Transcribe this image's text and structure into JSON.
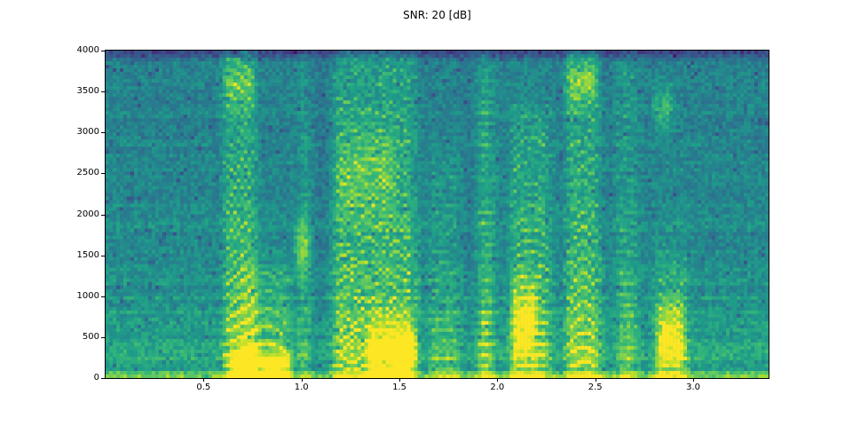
{
  "chart_data": {
    "type": "heatmap",
    "subtype": "speech-spectrogram",
    "title": "SNR: 20 [dB]",
    "xlabel": "",
    "ylabel": "",
    "xlim": [
      0,
      3.385
    ],
    "ylim": [
      0,
      4000
    ],
    "xticks": [
      0.5,
      1.0,
      1.5,
      2.0,
      2.5,
      3.0
    ],
    "yticks": [
      0,
      500,
      1000,
      1500,
      2000,
      2500,
      3000,
      3500,
      4000
    ],
    "grid_off": true,
    "legend": "none",
    "colormap": "viridis",
    "colormap_stops": [
      [
        68,
        1,
        84
      ],
      [
        72,
        40,
        120
      ],
      [
        62,
        74,
        137
      ],
      [
        49,
        104,
        142
      ],
      [
        38,
        130,
        142
      ],
      [
        31,
        158,
        137
      ],
      [
        53,
        183,
        121
      ],
      [
        109,
        205,
        89
      ],
      [
        180,
        222,
        44
      ],
      [
        253,
        231,
        37
      ]
    ],
    "grid": {
      "cols": 187,
      "rows": 92
    },
    "seed": 1337,
    "noise": {
      "row": 0.06,
      "cell": 0.17,
      "speckle_p": 0.05,
      "speckle": 0.13
    },
    "background": {
      "base": 0.5,
      "tilt": 0.06,
      "low_boost": 0.1,
      "low_scale": 800,
      "low_streak": 0.1,
      "streak_period": 185,
      "streak_scale": 1100,
      "top_start": 3840,
      "top_drop": 0.24,
      "bottom_line_amp": 0.22,
      "bottom_line_fw": 60
    },
    "segments": [
      {
        "t0": 0.58,
        "t1": 0.8,
        "amp": 0.42,
        "fmax": 4000,
        "f0": [
          130,
          200
        ],
        "arc": false
      },
      {
        "t0": 0.66,
        "t1": 0.97,
        "amp": 0.36,
        "fmax": 1300,
        "f0": [
          110,
          215
        ],
        "arc": true
      },
      {
        "t0": 0.97,
        "t1": 1.06,
        "amp": 0.27,
        "fmax": 4000,
        "f0": [
          140,
          140
        ],
        "arc": false
      },
      {
        "t0": 1.14,
        "t1": 1.62,
        "amp": 0.42,
        "fmax": 4000,
        "f0": [
          130,
          115
        ],
        "arc": false,
        "wob": 35,
        "wobf": 3
      },
      {
        "t0": 1.63,
        "t1": 1.83,
        "amp": 0.2,
        "fmax": 2600,
        "f0": [
          120,
          115
        ],
        "arc": false
      },
      {
        "t0": 1.88,
        "t1": 2.01,
        "amp": 0.36,
        "fmax": 4000,
        "f0": [
          135,
          135
        ],
        "arc": false
      },
      {
        "t0": 2.04,
        "t1": 2.3,
        "amp": 0.4,
        "fmax": 3200,
        "f0": [
          125,
          140
        ],
        "arc": true
      },
      {
        "t0": 2.33,
        "t1": 2.55,
        "amp": 0.42,
        "fmax": 4000,
        "f0": [
          105,
          185
        ],
        "arc": true
      },
      {
        "t0": 2.59,
        "t1": 2.74,
        "amp": 0.27,
        "fmax": 3800,
        "f0": [
          130,
          125
        ],
        "arc": false
      },
      {
        "t0": 2.78,
        "t1": 3.0,
        "amp": 0.34,
        "fmax": 1500,
        "f0": [
          190,
          105
        ],
        "arc": false
      }
    ],
    "blobs": [
      {
        "t0": 0.62,
        "t1": 0.97,
        "fc": 160,
        "fw": 140,
        "amp": 0.38
      },
      {
        "t0": 0.58,
        "t1": 0.78,
        "fc": 3600,
        "fw": 300,
        "amp": 0.2
      },
      {
        "t0": 0.95,
        "t1": 1.06,
        "fc": 1600,
        "fw": 300,
        "amp": 0.26
      },
      {
        "t0": 1.16,
        "t1": 1.5,
        "fc": 2500,
        "fw": 500,
        "amp": 0.14
      },
      {
        "t0": 1.32,
        "t1": 1.6,
        "fc": 350,
        "fw": 320,
        "amp": 0.38
      },
      {
        "t0": 2.06,
        "t1": 2.22,
        "fc": 700,
        "fw": 450,
        "amp": 0.33
      },
      {
        "t0": 2.33,
        "t1": 2.52,
        "fc": 3600,
        "fw": 280,
        "amp": 0.24
      },
      {
        "t0": 2.8,
        "t1": 2.97,
        "fc": 500,
        "fw": 380,
        "amp": 0.34
      },
      {
        "t0": 2.78,
        "t1": 2.92,
        "fc": 3300,
        "fw": 280,
        "amp": 0.2
      },
      {
        "t0": 1.06,
        "t1": 1.14,
        "fc": 2000,
        "fw": 2600,
        "amp": -0.08
      },
      {
        "t0": 1.83,
        "t1": 1.88,
        "fc": 2000,
        "fw": 2600,
        "amp": -0.07
      },
      {
        "t0": 2.55,
        "t1": 2.59,
        "fc": 2000,
        "fw": 2600,
        "amp": -0.05
      },
      {
        "t0": 2.74,
        "t1": 2.78,
        "fc": 2000,
        "fw": 2600,
        "amp": -0.05
      }
    ]
  }
}
